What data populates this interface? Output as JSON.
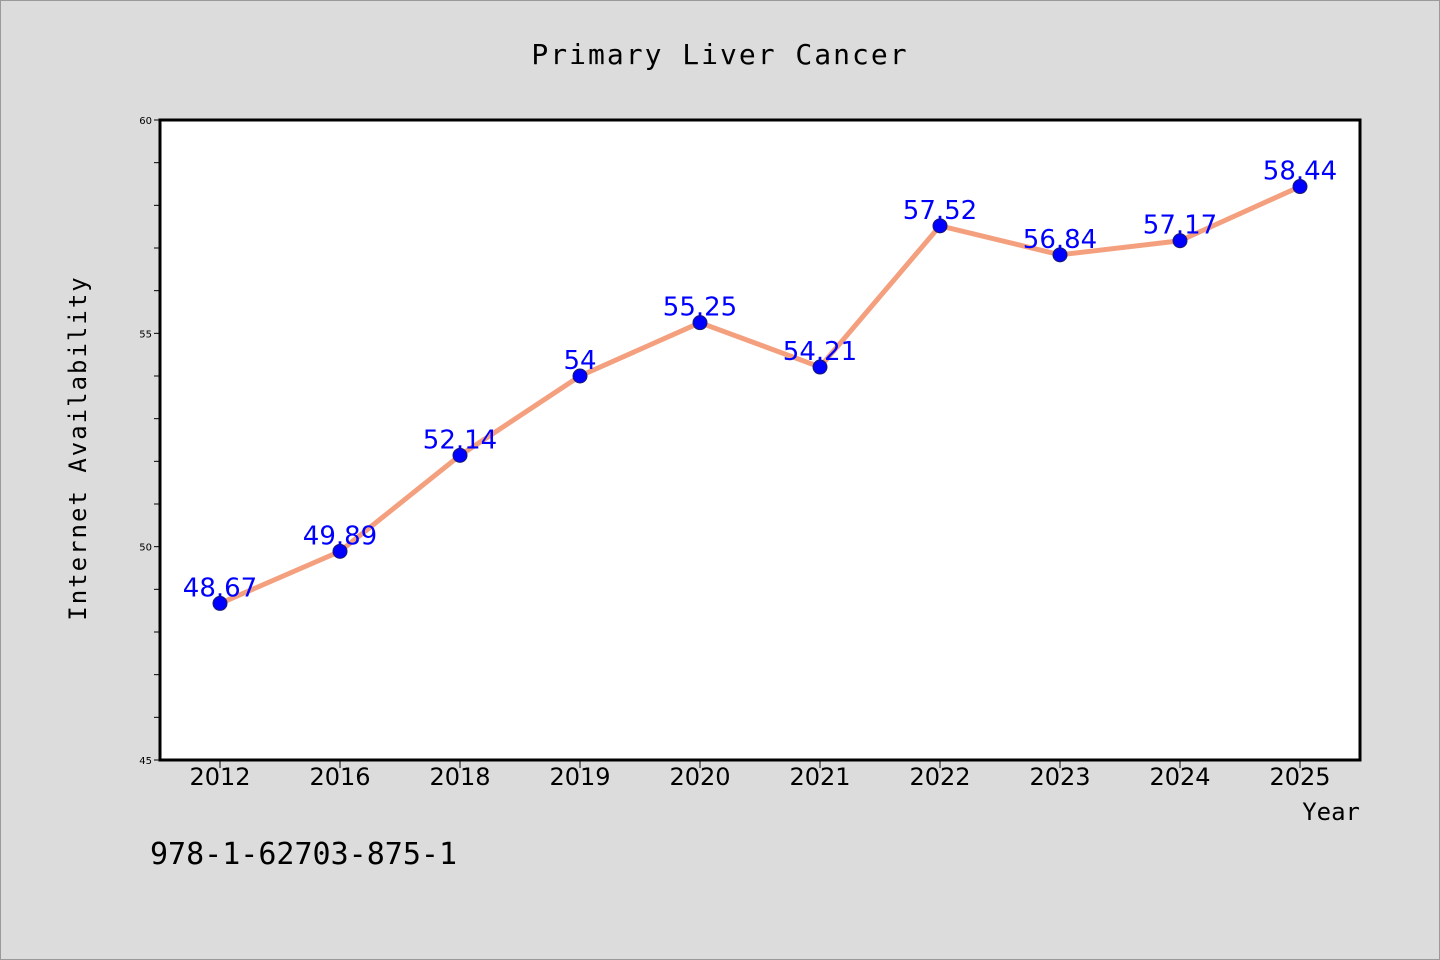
{
  "chart_data": {
    "type": "line",
    "title": "Primary Liver Cancer",
    "xlabel": "Year",
    "ylabel": "Internet Availability",
    "categories": [
      "2012",
      "2016",
      "2018",
      "2019",
      "2020",
      "2021",
      "2022",
      "2023",
      "2024",
      "2025"
    ],
    "series": [
      {
        "values": [
          48.67,
          49.89,
          52.14,
          54,
          55.25,
          54.21,
          57.52,
          56.84,
          57.17,
          58.44
        ],
        "data_labels": [
          "48.67",
          "49.89",
          "52.14",
          "54",
          "55.25",
          "54.21",
          "57.52",
          "56.84",
          "57.17",
          "58.44"
        ],
        "line_color": "#f4a07e",
        "marker_color": "#0000ff"
      }
    ],
    "ylim": [
      45,
      60
    ],
    "yticks": [
      "45",
      "50",
      "55",
      "60"
    ],
    "grid": false,
    "legend": "none"
  },
  "footer_code": "978-1-62703-875-1",
  "colors": {
    "background": "#dcdcdc",
    "plot_background": "#ffffff",
    "data_label": "#0000ff",
    "text": "#000000"
  }
}
